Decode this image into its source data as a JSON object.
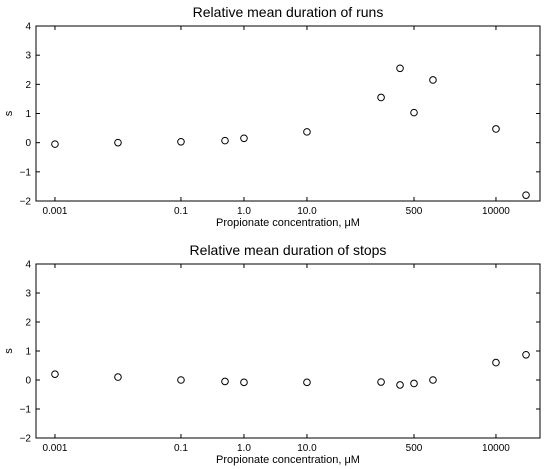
{
  "chart_data": [
    {
      "type": "scatter",
      "title": "Relative mean duration of runs",
      "xlabel": "Propionate concentration, μM",
      "ylabel": "s",
      "x_scale": "log",
      "xlim": [
        0.0005,
        50000
      ],
      "ylim": [
        -2,
        4
      ],
      "x_ticks": [
        0.001,
        0.1,
        1.0,
        10.0,
        500,
        10000
      ],
      "x_tick_labels": [
        "0.001",
        "0.1",
        "1.0",
        "10.0",
        "500",
        "10000"
      ],
      "y_ticks": [
        -2,
        -1,
        0,
        1,
        2,
        3,
        4
      ],
      "y_tick_labels": [
        "−2",
        "−1",
        "0",
        "1",
        "2",
        "3",
        "4"
      ],
      "grid": false,
      "series": [
        {
          "x": [
            0.001,
            0.01,
            0.1,
            0.5,
            1,
            10,
            150,
            300,
            500,
            1000,
            10000,
            30000
          ],
          "y": [
            -0.05,
            0.0,
            0.03,
            0.07,
            0.15,
            0.37,
            1.55,
            2.55,
            1.03,
            2.15,
            0.47,
            -1.8
          ]
        }
      ]
    },
    {
      "type": "scatter",
      "title": "Relative mean duration of stops",
      "xlabel": "Propionate concentration, μM",
      "ylabel": "s",
      "x_scale": "log",
      "xlim": [
        0.0005,
        50000
      ],
      "ylim": [
        -2,
        4
      ],
      "x_ticks": [
        0.001,
        0.1,
        1.0,
        10.0,
        500,
        10000
      ],
      "x_tick_labels": [
        "0.001",
        "0.1",
        "1.0",
        "10.0",
        "500",
        "10000"
      ],
      "y_ticks": [
        -2,
        -1,
        0,
        1,
        2,
        3,
        4
      ],
      "y_tick_labels": [
        "−2",
        "−1",
        "0",
        "1",
        "2",
        "3",
        "4"
      ],
      "grid": false,
      "series": [
        {
          "x": [
            0.001,
            0.01,
            0.1,
            0.5,
            1,
            10,
            150,
            300,
            500,
            1000,
            10000,
            30000
          ],
          "y": [
            0.2,
            0.1,
            0.0,
            -0.05,
            -0.08,
            -0.08,
            -0.07,
            -0.17,
            -0.12,
            0.0,
            0.6,
            0.87
          ]
        }
      ]
    }
  ]
}
